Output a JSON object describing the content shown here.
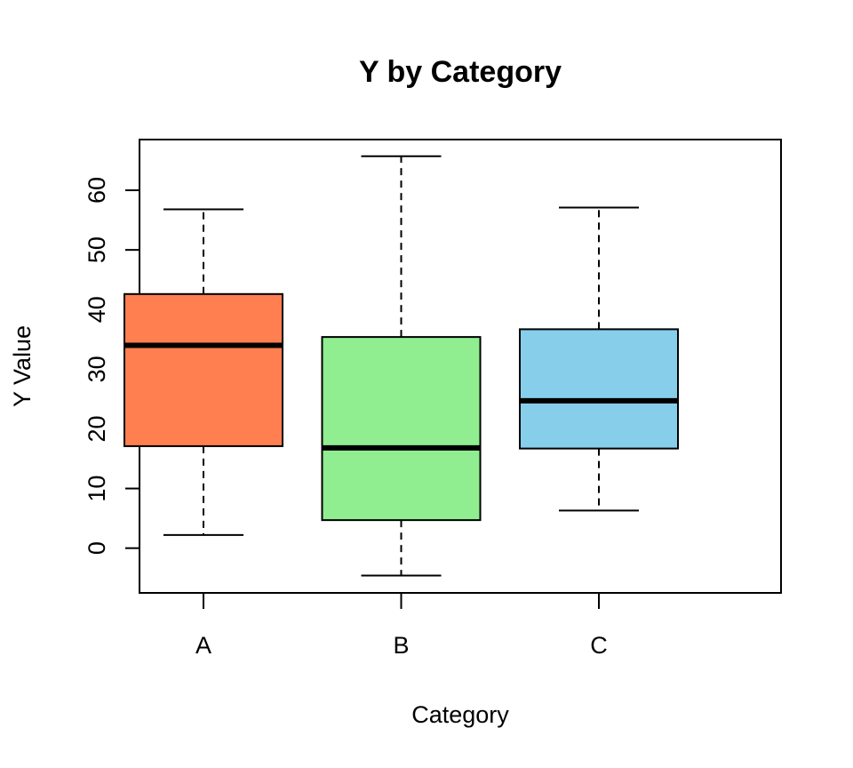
{
  "chart_data": {
    "type": "boxplot",
    "title": "Y by Category",
    "xlabel": "Category",
    "ylabel": "Y Value",
    "categories": [
      "A",
      "B",
      "C"
    ],
    "yticks": [
      0,
      10,
      20,
      30,
      40,
      50,
      60
    ],
    "ylim": [
      -7.5,
      68.5
    ],
    "grid": false,
    "boxes": [
      {
        "category": "A",
        "whisker_low": 2.2,
        "q1": 17.1,
        "median": 34.0,
        "q3": 42.6,
        "whisker_high": 56.8,
        "color": "#FF7F50"
      },
      {
        "category": "B",
        "whisker_low": -4.6,
        "q1": 4.7,
        "median": 16.8,
        "q3": 35.4,
        "whisker_high": 65.7,
        "color": "#90EE90"
      },
      {
        "category": "C",
        "whisker_low": 6.3,
        "q1": 16.7,
        "median": 24.7,
        "q3": 36.7,
        "whisker_high": 57.1,
        "color": "#87CEEB"
      }
    ]
  }
}
